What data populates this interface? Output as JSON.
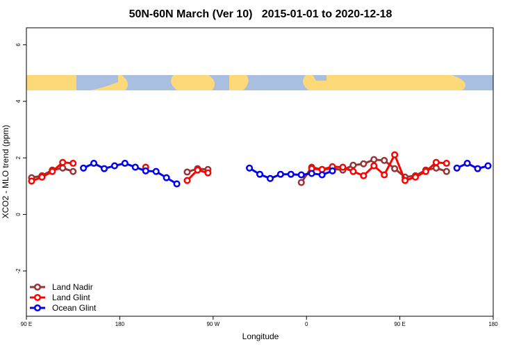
{
  "chart_data": {
    "type": "line",
    "title": "50N-60N March (Ver 10)   2015-01-01 to 2020-12-18",
    "x_label": "Longitude",
    "y_label": "XCO2 - MLO trend (ppm)",
    "x": [
      95,
      105,
      115,
      125,
      135,
      145,
      155,
      165,
      175,
      185,
      195,
      205,
      215,
      225,
      235,
      245,
      255,
      265,
      275,
      285,
      295,
      305,
      315,
      325,
      335,
      345,
      355,
      365,
      375,
      385,
      395,
      405,
      415,
      425,
      435,
      445,
      455,
      465,
      475,
      485,
      495,
      505,
      515,
      525,
      535
    ],
    "series": [
      {
        "name": "Land Nadir",
        "color": "#993333",
        "values": [
          1.3,
          1.37,
          1.57,
          1.64,
          1.52,
          null,
          null,
          null,
          null,
          null,
          null,
          null,
          null,
          null,
          null,
          1.5,
          1.62,
          1.59,
          null,
          null,
          null,
          null,
          null,
          null,
          null,
          null,
          1.13,
          1.67,
          1.59,
          1.62,
          1.57,
          1.74,
          1.79,
          1.94,
          1.91,
          1.62,
          1.32,
          1.37,
          1.57,
          1.64,
          1.52,
          null,
          null,
          null,
          null
        ]
      },
      {
        "name": "Land Glint",
        "color": "#ff0000",
        "values": [
          1.18,
          1.32,
          1.52,
          1.84,
          1.81,
          null,
          null,
          null,
          null,
          null,
          null,
          1.67,
          null,
          null,
          null,
          1.2,
          1.57,
          1.47,
          null,
          null,
          null,
          null,
          null,
          null,
          null,
          null,
          null,
          1.62,
          1.59,
          1.69,
          1.67,
          1.52,
          1.37,
          1.72,
          1.4,
          2.11,
          1.2,
          1.32,
          1.52,
          1.84,
          1.81,
          null,
          null,
          null,
          null
        ]
      },
      {
        "name": "Ocean Glint",
        "color": "#0000ee",
        "values": [
          null,
          null,
          null,
          null,
          null,
          1.64,
          1.81,
          1.62,
          1.72,
          1.81,
          1.67,
          1.54,
          1.52,
          1.3,
          1.08,
          null,
          null,
          null,
          null,
          null,
          null,
          1.64,
          1.42,
          1.27,
          1.42,
          1.42,
          1.4,
          1.45,
          1.4,
          1.54,
          null,
          null,
          null,
          null,
          null,
          null,
          null,
          null,
          null,
          null,
          null,
          1.64,
          1.81,
          1.62,
          1.72
        ]
      }
    ],
    "xlim": [
      90,
      540
    ],
    "xticks": [
      {
        "value": 90,
        "label": "90 E"
      },
      180,
      {
        "value": 270,
        "label": "90 W"
      },
      {
        "value": 360,
        "label": "0"
      },
      {
        "value": 450,
        "label": "90 E"
      },
      {
        "value": 540,
        "label": "180"
      }
    ],
    "ylim": [
      -3.6,
      6.6
    ],
    "yticks": [
      -2,
      0,
      2,
      4,
      6
    ],
    "legend": "bottom-left"
  }
}
